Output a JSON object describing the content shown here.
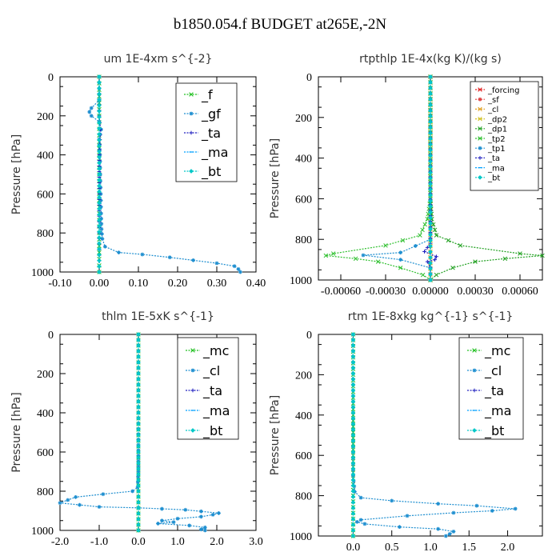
{
  "page": {
    "title": "b1850.054.f  BUDGET at265E,-2N"
  },
  "chart_data": [
    {
      "type": "line",
      "title": "um  1E-4xm s^{-2}",
      "ylabel": "Pressure [hPa]",
      "xlabel": "",
      "xlim": [
        -0.1,
        0.4
      ],
      "ylim": [
        1000,
        0
      ],
      "x_ticks": [
        "-0.10",
        "0.00",
        "0.10",
        "0.20",
        "0.30",
        "0.40"
      ],
      "x_tick_values": [
        -0.1,
        0.0,
        0.1,
        0.2,
        0.3,
        0.4
      ],
      "y_ticks": [
        "0",
        "200",
        "400",
        "600",
        "800",
        "1000"
      ],
      "y_tick_values": [
        0,
        200,
        400,
        600,
        800,
        1000
      ],
      "legend": [
        "_f",
        "_gf",
        "_ta",
        "_ma",
        "_bt"
      ],
      "legend_position": "top-right",
      "series": [
        {
          "name": "_f",
          "color": "#22c022",
          "marker": "x",
          "points": [
            [
              0.0,
              0
            ],
            [
              0.0,
              100
            ],
            [
              0.0,
              200
            ],
            [
              0.0,
              300
            ],
            [
              0.0,
              400
            ],
            [
              0.0,
              500
            ],
            [
              0.0,
              600
            ],
            [
              0.0,
              700
            ],
            [
              0.0,
              800
            ],
            [
              0.0,
              900
            ],
            [
              0.0,
              1000
            ]
          ]
        },
        {
          "name": "_gf",
          "color": "#1f8fd0",
          "marker": "star",
          "points": [
            [
              0.0,
              0
            ],
            [
              0.0,
              60
            ],
            [
              0.0,
              120
            ],
            [
              -0.02,
              160
            ],
            [
              -0.025,
              180
            ],
            [
              -0.02,
              200
            ],
            [
              0.0,
              230
            ],
            [
              0.005,
              270
            ],
            [
              0.0,
              320
            ],
            [
              0.002,
              400
            ],
            [
              0.003,
              500
            ],
            [
              0.004,
              600
            ],
            [
              0.005,
              700
            ],
            [
              0.006,
              780
            ],
            [
              0.008,
              830
            ],
            [
              0.015,
              870
            ],
            [
              0.05,
              900
            ],
            [
              0.11,
              910
            ],
            [
              0.18,
              925
            ],
            [
              0.24,
              940
            ],
            [
              0.3,
              955
            ],
            [
              0.345,
              970
            ],
            [
              0.355,
              985
            ],
            [
              0.36,
              1000
            ]
          ]
        },
        {
          "name": "_ta",
          "color": "#2020c0",
          "marker": "plus",
          "points": [
            [
              0.0,
              0
            ],
            [
              0.0,
              200
            ],
            [
              0.003,
              270
            ],
            [
              0.0,
              400
            ],
            [
              0.0,
              600
            ],
            [
              0.0,
              800
            ],
            [
              0.0,
              1000
            ]
          ]
        },
        {
          "name": "_ma",
          "color": "#00a0ff",
          "marker": "dash",
          "points": [
            [
              0.0,
              0
            ],
            [
              0.0,
              500
            ],
            [
              0.0,
              1000
            ]
          ]
        },
        {
          "name": "_bt",
          "color": "#00c8c8",
          "marker": "diamond",
          "points": [
            [
              0.0,
              0
            ],
            [
              0.0,
              500
            ],
            [
              0.0,
              1000
            ]
          ]
        }
      ]
    },
    {
      "type": "line",
      "title": "rtpthlp  1E-4x(kg K)/(kg s)",
      "ylabel": "Pressure [hPa]",
      "xlabel": "",
      "xlim": [
        -0.00075,
        0.00075
      ],
      "ylim": [
        1000,
        0
      ],
      "x_ticks": [
        "-0.00060",
        "-0.00030",
        "0.00000",
        "0.00030",
        "0.00060"
      ],
      "x_tick_values": [
        -0.0006,
        -0.0003,
        0.0,
        0.0003,
        0.0006
      ],
      "y_ticks": [
        "0",
        "200",
        "400",
        "600",
        "800",
        "1000"
      ],
      "y_tick_values": [
        0,
        200,
        400,
        600,
        800,
        1000
      ],
      "legend": [
        "_forcing",
        "_sf",
        "_cl",
        "_dp2",
        "_dp1",
        "_tp2",
        "_tp1",
        "_ta",
        "_ma",
        "_bt"
      ],
      "legend_position": "top-right",
      "series": [
        {
          "name": "_forcing",
          "color": "#e02020",
          "marker": "x",
          "points": [
            [
              0.0,
              0
            ],
            [
              0.0,
              500
            ],
            [
              0.0,
              1000
            ]
          ]
        },
        {
          "name": "_sf",
          "color": "#e04040",
          "marker": "star",
          "points": [
            [
              0.0,
              0
            ],
            [
              0.0,
              500
            ],
            [
              0.0,
              1000
            ]
          ]
        },
        {
          "name": "_cl",
          "color": "#e0a020",
          "marker": "x",
          "points": [
            [
              0.0,
              0
            ],
            [
              0.0,
              1000
            ]
          ]
        },
        {
          "name": "_dp2",
          "color": "#d0c020",
          "marker": "x",
          "points": [
            [
              0.0,
              0
            ],
            [
              0.0,
              1000
            ]
          ]
        },
        {
          "name": "_dp1",
          "color": "#20a020",
          "marker": "x",
          "points": [
            [
              0.0,
              0
            ],
            [
              0.0,
              600
            ],
            [
              1e-05,
              700
            ],
            [
              4e-05,
              780
            ],
            [
              0.0002,
              830
            ],
            [
              0.0006,
              870
            ],
            [
              0.00075,
              880
            ],
            [
              0.0005,
              895
            ],
            [
              0.0003,
              910
            ],
            [
              0.00015,
              940
            ],
            [
              4e-05,
              975
            ],
            [
              0.0,
              1000
            ]
          ]
        },
        {
          "name": "_tp2",
          "color": "#30c030",
          "marker": "x",
          "points": [
            [
              0.0,
              0
            ],
            [
              0.0,
              600
            ],
            [
              -2e-05,
              700
            ],
            [
              -7e-05,
              780
            ],
            [
              -0.0003,
              830
            ],
            [
              -0.00065,
              870
            ],
            [
              -0.0007,
              880
            ],
            [
              -0.0005,
              895
            ],
            [
              -0.00035,
              910
            ],
            [
              -0.0002,
              940
            ],
            [
              -5e-05,
              975
            ],
            [
              0.0,
              1000
            ]
          ]
        },
        {
          "name": "_tp1",
          "color": "#1f8fd0",
          "marker": "star",
          "points": [
            [
              0.0,
              0
            ],
            [
              0.0,
              800
            ],
            [
              -0.0002,
              865
            ],
            [
              -0.00045,
              878
            ],
            [
              -0.0002,
              900
            ],
            [
              0.0,
              940
            ],
            [
              0.0,
              1000
            ]
          ]
        },
        {
          "name": "_ta",
          "color": "#2020c0",
          "marker": "plus",
          "points": [
            [
              0.0,
              0
            ],
            [
              0.0,
              820
            ],
            [
              -2e-05,
              840
            ],
            [
              -4e-05,
              860
            ],
            [
              4e-05,
              885
            ],
            [
              3e-05,
              900
            ],
            [
              -2e-05,
              910
            ],
            [
              0.0,
              940
            ],
            [
              0.0,
              1000
            ]
          ]
        },
        {
          "name": "_ma",
          "color": "#00a0ff",
          "marker": "dash",
          "points": [
            [
              0.0,
              0
            ],
            [
              0.0,
              1000
            ]
          ]
        },
        {
          "name": "_bt",
          "color": "#00c8c8",
          "marker": "diamond",
          "points": [
            [
              0.0,
              0
            ],
            [
              0.0,
              1000
            ]
          ]
        }
      ]
    },
    {
      "type": "line",
      "title": "thlm  1E-5xK s^{-1}",
      "ylabel": "Pressure [hPa]",
      "xlabel": "",
      "xlim": [
        -2.0,
        3.0
      ],
      "ylim": [
        1000,
        0
      ],
      "x_ticks": [
        "-2.0",
        "-1.0",
        "0.0",
        "1.0",
        "2.0",
        "3.0"
      ],
      "x_tick_values": [
        -2.0,
        -1.0,
        0.0,
        1.0,
        2.0,
        3.0
      ],
      "y_ticks": [
        "0",
        "200",
        "400",
        "600",
        "800",
        "1000"
      ],
      "y_tick_values": [
        0,
        200,
        400,
        600,
        800,
        1000
      ],
      "legend": [
        "_mc",
        "_cl",
        "_ta",
        "_ma",
        "_bt"
      ],
      "legend_position": "top-right",
      "series": [
        {
          "name": "_mc",
          "color": "#22c022",
          "marker": "x",
          "points": [
            [
              0.0,
              0
            ],
            [
              0.0,
              200
            ],
            [
              0.0,
              400
            ],
            [
              0.0,
              600
            ],
            [
              0.0,
              800
            ],
            [
              0.0,
              1000
            ]
          ]
        },
        {
          "name": "_cl",
          "color": "#1f8fd0",
          "marker": "star",
          "points": [
            [
              0.0,
              0
            ],
            [
              0.0,
              400
            ],
            [
              0.0,
              700
            ],
            [
              -0.02,
              780
            ],
            [
              -0.15,
              800
            ],
            [
              -0.9,
              815
            ],
            [
              -1.6,
              830
            ],
            [
              -1.8,
              845
            ],
            [
              -2.0,
              860
            ],
            [
              -1.5,
              870
            ],
            [
              -1.0,
              880
            ],
            [
              0.0,
              885
            ],
            [
              0.6,
              890
            ],
            [
              1.2,
              895
            ],
            [
              1.6,
              903
            ],
            [
              2.05,
              912
            ],
            [
              1.9,
              920
            ],
            [
              1.6,
              930
            ],
            [
              1.0,
              940
            ],
            [
              0.6,
              950
            ],
            [
              0.9,
              958
            ],
            [
              0.5,
              965
            ],
            [
              1.3,
              975
            ],
            [
              1.7,
              985
            ],
            [
              1.6,
              995
            ],
            [
              1.7,
              1000
            ]
          ]
        },
        {
          "name": "_ta",
          "color": "#2020c0",
          "marker": "plus",
          "points": [
            [
              0.0,
              0
            ],
            [
              0.0,
              1000
            ]
          ]
        },
        {
          "name": "_ma",
          "color": "#00a0ff",
          "marker": "dash",
          "points": [
            [
              0.0,
              0
            ],
            [
              0.0,
              1000
            ]
          ]
        },
        {
          "name": "_bt",
          "color": "#00c8c8",
          "marker": "diamond",
          "points": [
            [
              0.0,
              0
            ],
            [
              0.0,
              1000
            ]
          ]
        }
      ]
    },
    {
      "type": "line",
      "title": "rtm  1E-8xkg kg^{-1} s^{-1}",
      "ylabel": "Pressure [hPa]",
      "xlabel": "",
      "xlim": [
        -0.45,
        2.45
      ],
      "ylim": [
        1000,
        0
      ],
      "x_ticks": [
        "0.0",
        "0.5",
        "1.0",
        "1.5",
        "2.0"
      ],
      "x_tick_values": [
        0.0,
        0.5,
        1.0,
        1.5,
        2.0
      ],
      "y_ticks": [
        "0",
        "200",
        "400",
        "600",
        "800",
        "1000"
      ],
      "y_tick_values": [
        0,
        200,
        400,
        600,
        800,
        1000
      ],
      "legend": [
        "_mc",
        "_cl",
        "_ta",
        "_ma",
        "_bt"
      ],
      "legend_position": "top-right",
      "series": [
        {
          "name": "_mc",
          "color": "#22c022",
          "marker": "x",
          "points": [
            [
              0.0,
              0
            ],
            [
              0.0,
              200
            ],
            [
              0.0,
              400
            ],
            [
              0.0,
              600
            ],
            [
              0.0,
              800
            ],
            [
              0.0,
              1000
            ]
          ]
        },
        {
          "name": "_cl",
          "color": "#1f8fd0",
          "marker": "star",
          "points": [
            [
              0.0,
              0
            ],
            [
              0.0,
              500
            ],
            [
              0.0,
              700
            ],
            [
              0.02,
              780
            ],
            [
              0.1,
              810
            ],
            [
              0.5,
              825
            ],
            [
              1.1,
              840
            ],
            [
              1.6,
              850
            ],
            [
              2.1,
              865
            ],
            [
              1.8,
              875
            ],
            [
              1.3,
              885
            ],
            [
              0.7,
              900
            ],
            [
              0.1,
              920
            ],
            [
              0.05,
              930
            ],
            [
              0.15,
              940
            ],
            [
              0.6,
              955
            ],
            [
              1.1,
              965
            ],
            [
              1.3,
              978
            ],
            [
              1.25,
              990
            ],
            [
              1.2,
              1000
            ]
          ]
        },
        {
          "name": "_ta",
          "color": "#2020c0",
          "marker": "plus",
          "points": [
            [
              0.0,
              0
            ],
            [
              0.0,
              1000
            ]
          ]
        },
        {
          "name": "_ma",
          "color": "#00a0ff",
          "marker": "dash",
          "points": [
            [
              0.0,
              0
            ],
            [
              0.0,
              1000
            ]
          ]
        },
        {
          "name": "_bt",
          "color": "#00c8c8",
          "marker": "diamond",
          "points": [
            [
              0.0,
              0
            ],
            [
              0.0,
              1000
            ]
          ]
        }
      ]
    }
  ]
}
